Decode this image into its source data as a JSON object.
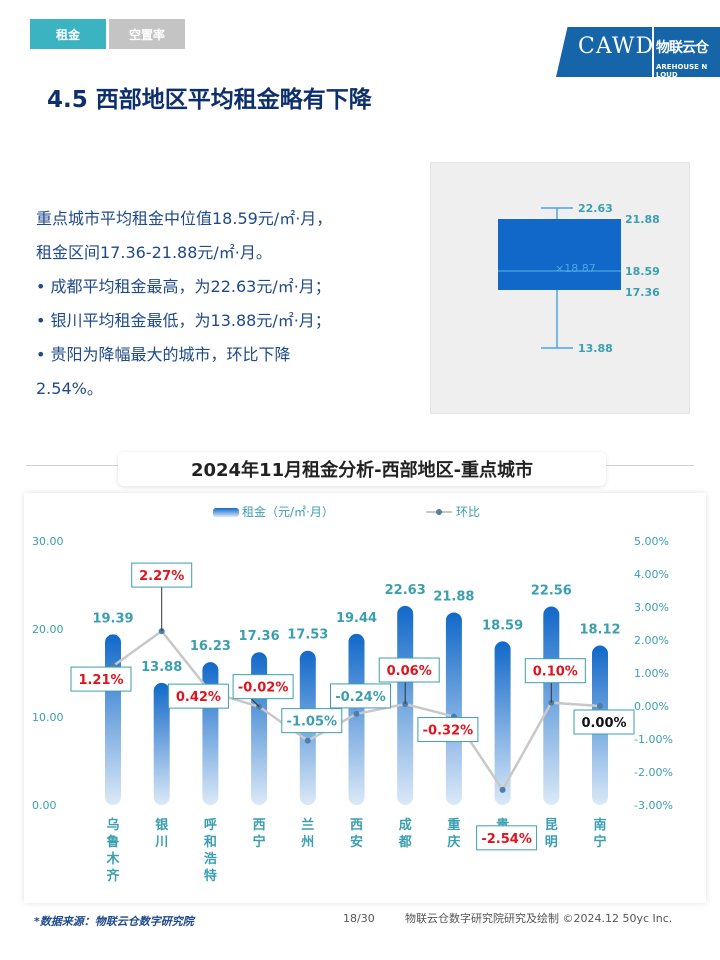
{
  "header": {
    "tabs": [
      {
        "label": "租金",
        "active": true
      },
      {
        "label": "空置率",
        "active": false
      }
    ],
    "logo": {
      "brand_en": "CAWD",
      "brand_cn": "物联云仓",
      "brand_en_sub": "AREHOUSE N LOUD"
    }
  },
  "title": "4.5 西部地区平均租金略有下降",
  "summary": {
    "line1": "重点城市平均租金中位值18.59元/㎡·月，",
    "line2": "租金区间17.36-21.88元/㎡·月。",
    "bullets": [
      "•  成都平均租金最高，为22.63元/㎡·月；",
      "•  银川平均租金最低，为13.88元/㎡·月；",
      "•  贵阳为降幅最大的城市，环比下降",
      "2.54%。"
    ]
  },
  "boxplot": {
    "max": "22.63",
    "q3": "21.88",
    "mean": "18.87",
    "median": "18.59",
    "q1": "17.36",
    "min": "13.88",
    "mean_label": "×18.87",
    "colors": {
      "box": "#1168c9",
      "whisker": "#4aa6e6",
      "label": "#3b9fb0"
    }
  },
  "section_title": "2024年11月租金分析-西部地区-重点城市",
  "chart_data": {
    "type": "bar",
    "legend": {
      "bar": "租金（元/㎡·月）",
      "line": "环比",
      "placement": "top-center"
    },
    "categories": [
      "乌鲁木齐",
      "银川",
      "呼和浩特",
      "西宁",
      "兰州",
      "西安",
      "成都",
      "重庆",
      "贵阳",
      "昆明",
      "南宁"
    ],
    "series": [
      {
        "name": "租金（元/㎡·月）",
        "type": "bar",
        "axis": "left",
        "values": [
          19.39,
          13.88,
          16.23,
          17.36,
          17.53,
          19.44,
          22.63,
          21.88,
          18.59,
          22.56,
          18.12
        ],
        "labels": [
          "19.39",
          "13.88",
          "16.23",
          "17.36",
          "17.53",
          "19.44",
          "22.63",
          "21.88",
          "18.59",
          "22.56",
          "18.12"
        ]
      },
      {
        "name": "环比",
        "type": "line",
        "axis": "right",
        "values": [
          1.21,
          2.27,
          0.42,
          -0.02,
          -1.05,
          -0.24,
          0.06,
          -0.32,
          -2.54,
          0.1,
          0.0
        ],
        "labels": [
          "1.21%",
          "2.27%",
          "0.42%",
          "-0.02%",
          "-1.05%",
          "-0.24%",
          "0.06%",
          "-0.32%",
          "-2.54%",
          "0.10%",
          "0.00%"
        ],
        "label_colors": [
          "red",
          "red",
          "red",
          "red",
          "teal",
          "teal",
          "red",
          "red",
          "red",
          "red",
          "black"
        ]
      }
    ],
    "y_left": {
      "min": 0,
      "max": 30,
      "ticks": [
        "0.00",
        "10.00",
        "20.00",
        "30.00"
      ]
    },
    "y_right": {
      "min": -3,
      "max": 5,
      "ticks": [
        "-3.00%",
        "-2.00%",
        "-1.00%",
        "0.00%",
        "1.00%",
        "2.00%",
        "3.00%",
        "4.00%",
        "5.00%"
      ]
    },
    "grid": false,
    "colors": {
      "bar_top": "#1168c9",
      "bar_bottom": "#d8e8f7",
      "line": "#c8c8c8",
      "marker": "#4f7fa8",
      "bar_label": "#3b9fb0",
      "red": "#e0141e",
      "teal": "#3b9fb0",
      "black": "#111111"
    }
  },
  "footer": {
    "source": "*数据来源：物联云仓数字研究院",
    "page": "18/30",
    "credit": "物联云仓数字研究院研究及绘制  ©2024.12 50yc Inc."
  }
}
